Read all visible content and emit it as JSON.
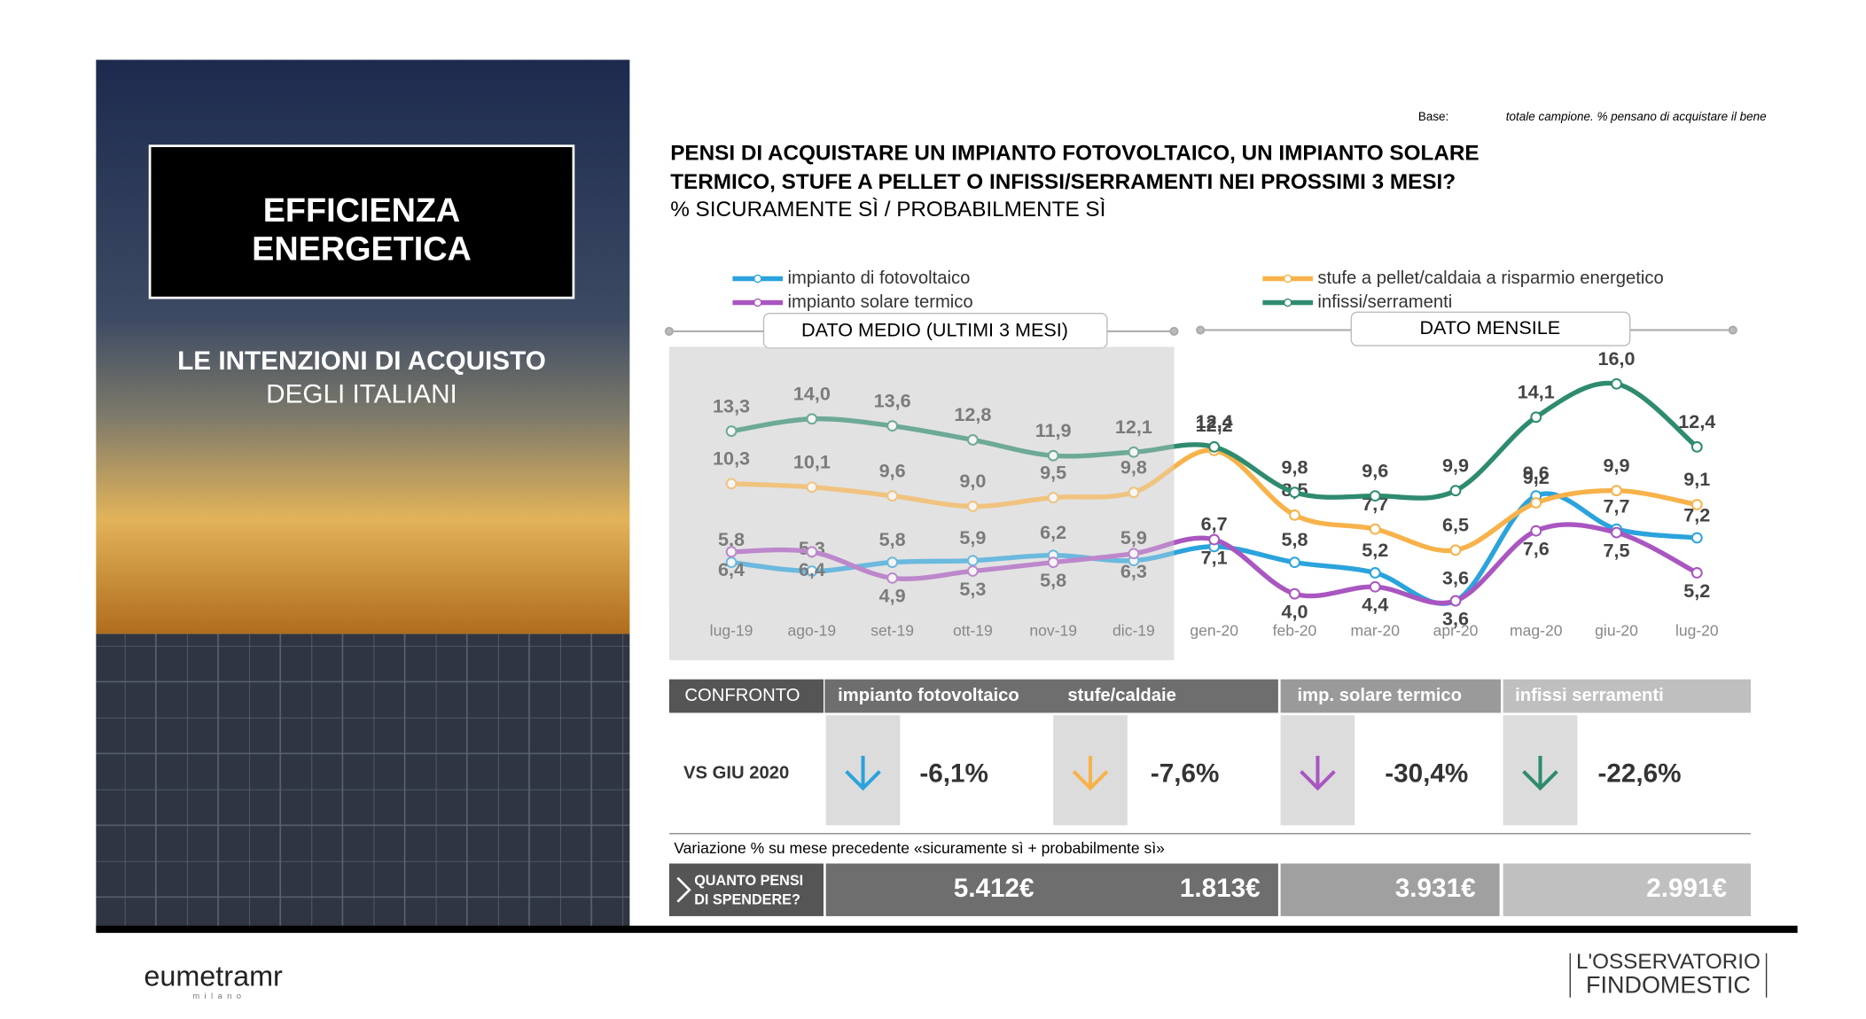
{
  "panel": {
    "title": [
      "EFFICIENZA",
      "ENERGETICA"
    ],
    "subtitle_bold": "LE INTENZIONI DI ACQUISTO",
    "subtitle": "DEGLI ITALIANI"
  },
  "base_note": {
    "label": "Base:",
    "text": "totale campione. % pensano di acquistare il bene"
  },
  "chart_data": {
    "type": "line",
    "title": [
      "PENSI DI ACQUISTARE UN IMPIANTO FOTOVOLTAICO, UN IMPIANTO SOLARE",
      "TERMICO,  STUFE A PELLET O INFISSI/SERRAMENTI NEI PROSSIMI 3 MESI?"
    ],
    "subtitle": "% SICURAMENTE SÌ / PROBABILMENTE SÌ",
    "sections": [
      "DATO MEDIO (ULTIMI 3 MESI)",
      "DATO MENSILE"
    ],
    "categories": [
      "lug-19",
      "ago-19",
      "set-19",
      "ott-19",
      "nov-19",
      "dic-19",
      "gen-20",
      "feb-20",
      "mar-20",
      "apr-20",
      "mag-20",
      "giu-20",
      "lug-20"
    ],
    "series": [
      {
        "name": "impianto di fotovoltaico",
        "color": "#2ba3dc",
        "values": [
          5.8,
          5.3,
          5.8,
          5.9,
          6.2,
          5.9,
          6.7,
          5.8,
          5.2,
          3.6,
          9.6,
          7.7,
          7.2
        ],
        "value_labels": [
          "5,8",
          "5,3",
          "5,8",
          "5,9",
          "6,2",
          "5,9",
          "6,7",
          "5,8",
          "5,2",
          "3,6",
          "9,6",
          "7,7",
          "7,2"
        ]
      },
      {
        "name": "impianto solare termico",
        "color": "#a956c0",
        "values": [
          6.4,
          6.4,
          4.9,
          5.3,
          5.8,
          6.3,
          7.1,
          4.0,
          4.4,
          3.6,
          7.6,
          7.5,
          5.2
        ],
        "value_labels": [
          "6,4",
          "6,4",
          "4,9",
          "5,3",
          "5,8",
          "6,3",
          "7,1",
          "4,0",
          "4,4",
          "3,6",
          "7,6",
          "7,5",
          "5,2"
        ]
      },
      {
        "name": "stufe a pellet/caldaia a risparmio energetico",
        "color": "#f7b24a",
        "values": [
          10.3,
          10.1,
          9.6,
          9.0,
          9.5,
          9.8,
          12.2,
          8.5,
          7.7,
          6.5,
          9.2,
          9.9,
          9.1
        ],
        "value_labels": [
          "10,3",
          "10,1",
          "9,6",
          "9,0",
          "9,5",
          "9,8",
          "12,2",
          "8,5",
          "7,7",
          "6,5",
          "9,2",
          "9,9",
          "9,1"
        ]
      },
      {
        "name": "infissi/serramenti",
        "color": "#2e8b6f",
        "values": [
          13.3,
          14.0,
          13.6,
          12.8,
          11.9,
          12.1,
          12.4,
          9.8,
          9.6,
          9.9,
          14.1,
          16.0,
          12.4
        ],
        "value_labels": [
          "13,3",
          "14,0",
          "13,6",
          "12,8",
          "11,9",
          "12,1",
          "12,4",
          "9,8",
          "9,6",
          "9,9",
          "14,1",
          "16,0",
          "12,4"
        ]
      }
    ]
  },
  "comparison": {
    "header": "CONFRONTO",
    "row_label": "VS GIU 2020",
    "items": [
      {
        "name": "impianto fotovoltaico",
        "change": "-6,1%",
        "color": "#2ba3dc"
      },
      {
        "name": "stufe/caldaie",
        "change": "-7,6%",
        "color": "#f7b24a"
      },
      {
        "name": "imp. solare termico",
        "change": "-30,4%",
        "color": "#a956c0"
      },
      {
        "name": "infissi serramenti",
        "change": "-22,6%",
        "color": "#2e8b6f"
      }
    ],
    "note": "Variazione % su mese precedente «sicuramente sì + probabilmente sì»",
    "spend_label": [
      "QUANTO PENSI",
      "DI SPENDERE?"
    ],
    "spend": [
      "5.412€",
      "1.813€",
      "3.931€",
      "2.991€"
    ]
  },
  "footer": {
    "left_logo": "eumetramr",
    "left_sub": "milano",
    "right_logo": [
      "L'OSSERVATORIO",
      "FINDOMESTIC"
    ]
  }
}
